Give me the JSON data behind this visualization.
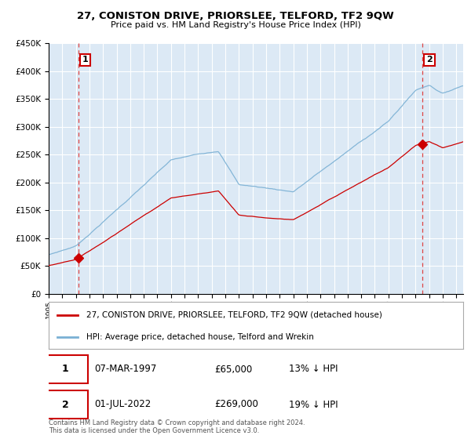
{
  "title": "27, CONISTON DRIVE, PRIORSLEE, TELFORD, TF2 9QW",
  "subtitle": "Price paid vs. HM Land Registry's House Price Index (HPI)",
  "ylabel_ticks": [
    "£0",
    "£50K",
    "£100K",
    "£150K",
    "£200K",
    "£250K",
    "£300K",
    "£350K",
    "£400K",
    "£450K"
  ],
  "ylim": [
    0,
    450000
  ],
  "xlim_start": 1995.0,
  "xlim_end": 2025.5,
  "sale1_date": 1997.18,
  "sale1_price": 65000,
  "sale2_date": 2022.5,
  "sale2_price": 269000,
  "hpi_color": "#7ab0d4",
  "price_color": "#cc0000",
  "dashed_color": "#dd4444",
  "bg_color": "#dce9f5",
  "grid_color": "#ffffff",
  "legend_label1": "27, CONISTON DRIVE, PRIORSLEE, TELFORD, TF2 9QW (detached house)",
  "legend_label2": "HPI: Average price, detached house, Telford and Wrekin",
  "table_row1": [
    "1",
    "07-MAR-1997",
    "£65,000",
    "13% ↓ HPI"
  ],
  "table_row2": [
    "2",
    "01-JUL-2022",
    "£269,000",
    "19% ↓ HPI"
  ],
  "footnote": "Contains HM Land Registry data © Crown copyright and database right 2024.\nThis data is licensed under the Open Government Licence v3.0."
}
